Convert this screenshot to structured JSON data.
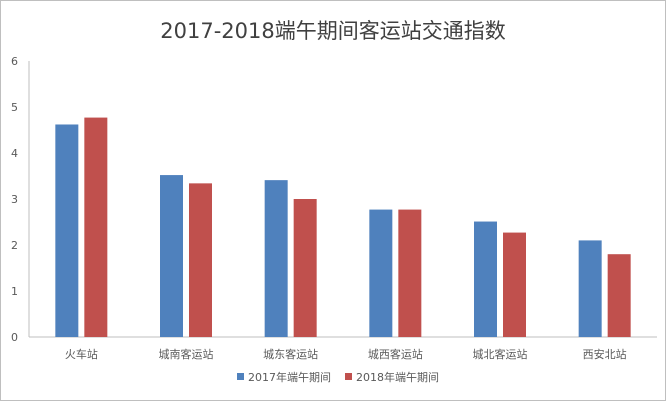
{
  "chart_data": {
    "type": "bar",
    "title": "2017-2018端午期间客运站交通指数",
    "categories": [
      "火车站",
      "城南客运站",
      "城东客运站",
      "城西客运站",
      "城北客运站",
      "西安北站"
    ],
    "series": [
      {
        "name": "2017年端午期间",
        "values": [
          4.62,
          3.52,
          3.41,
          2.77,
          2.51,
          2.1
        ],
        "color": "#4f81bd"
      },
      {
        "name": "2018年端午期间",
        "values": [
          4.77,
          3.34,
          3.0,
          2.77,
          2.27,
          1.8
        ],
        "color": "#c0504d"
      }
    ],
    "y_ticks": [
      "0",
      "1",
      "2",
      "3",
      "4",
      "5",
      "6"
    ],
    "ylim": [
      0,
      6
    ],
    "grid": false,
    "legend_position": "bottom"
  }
}
